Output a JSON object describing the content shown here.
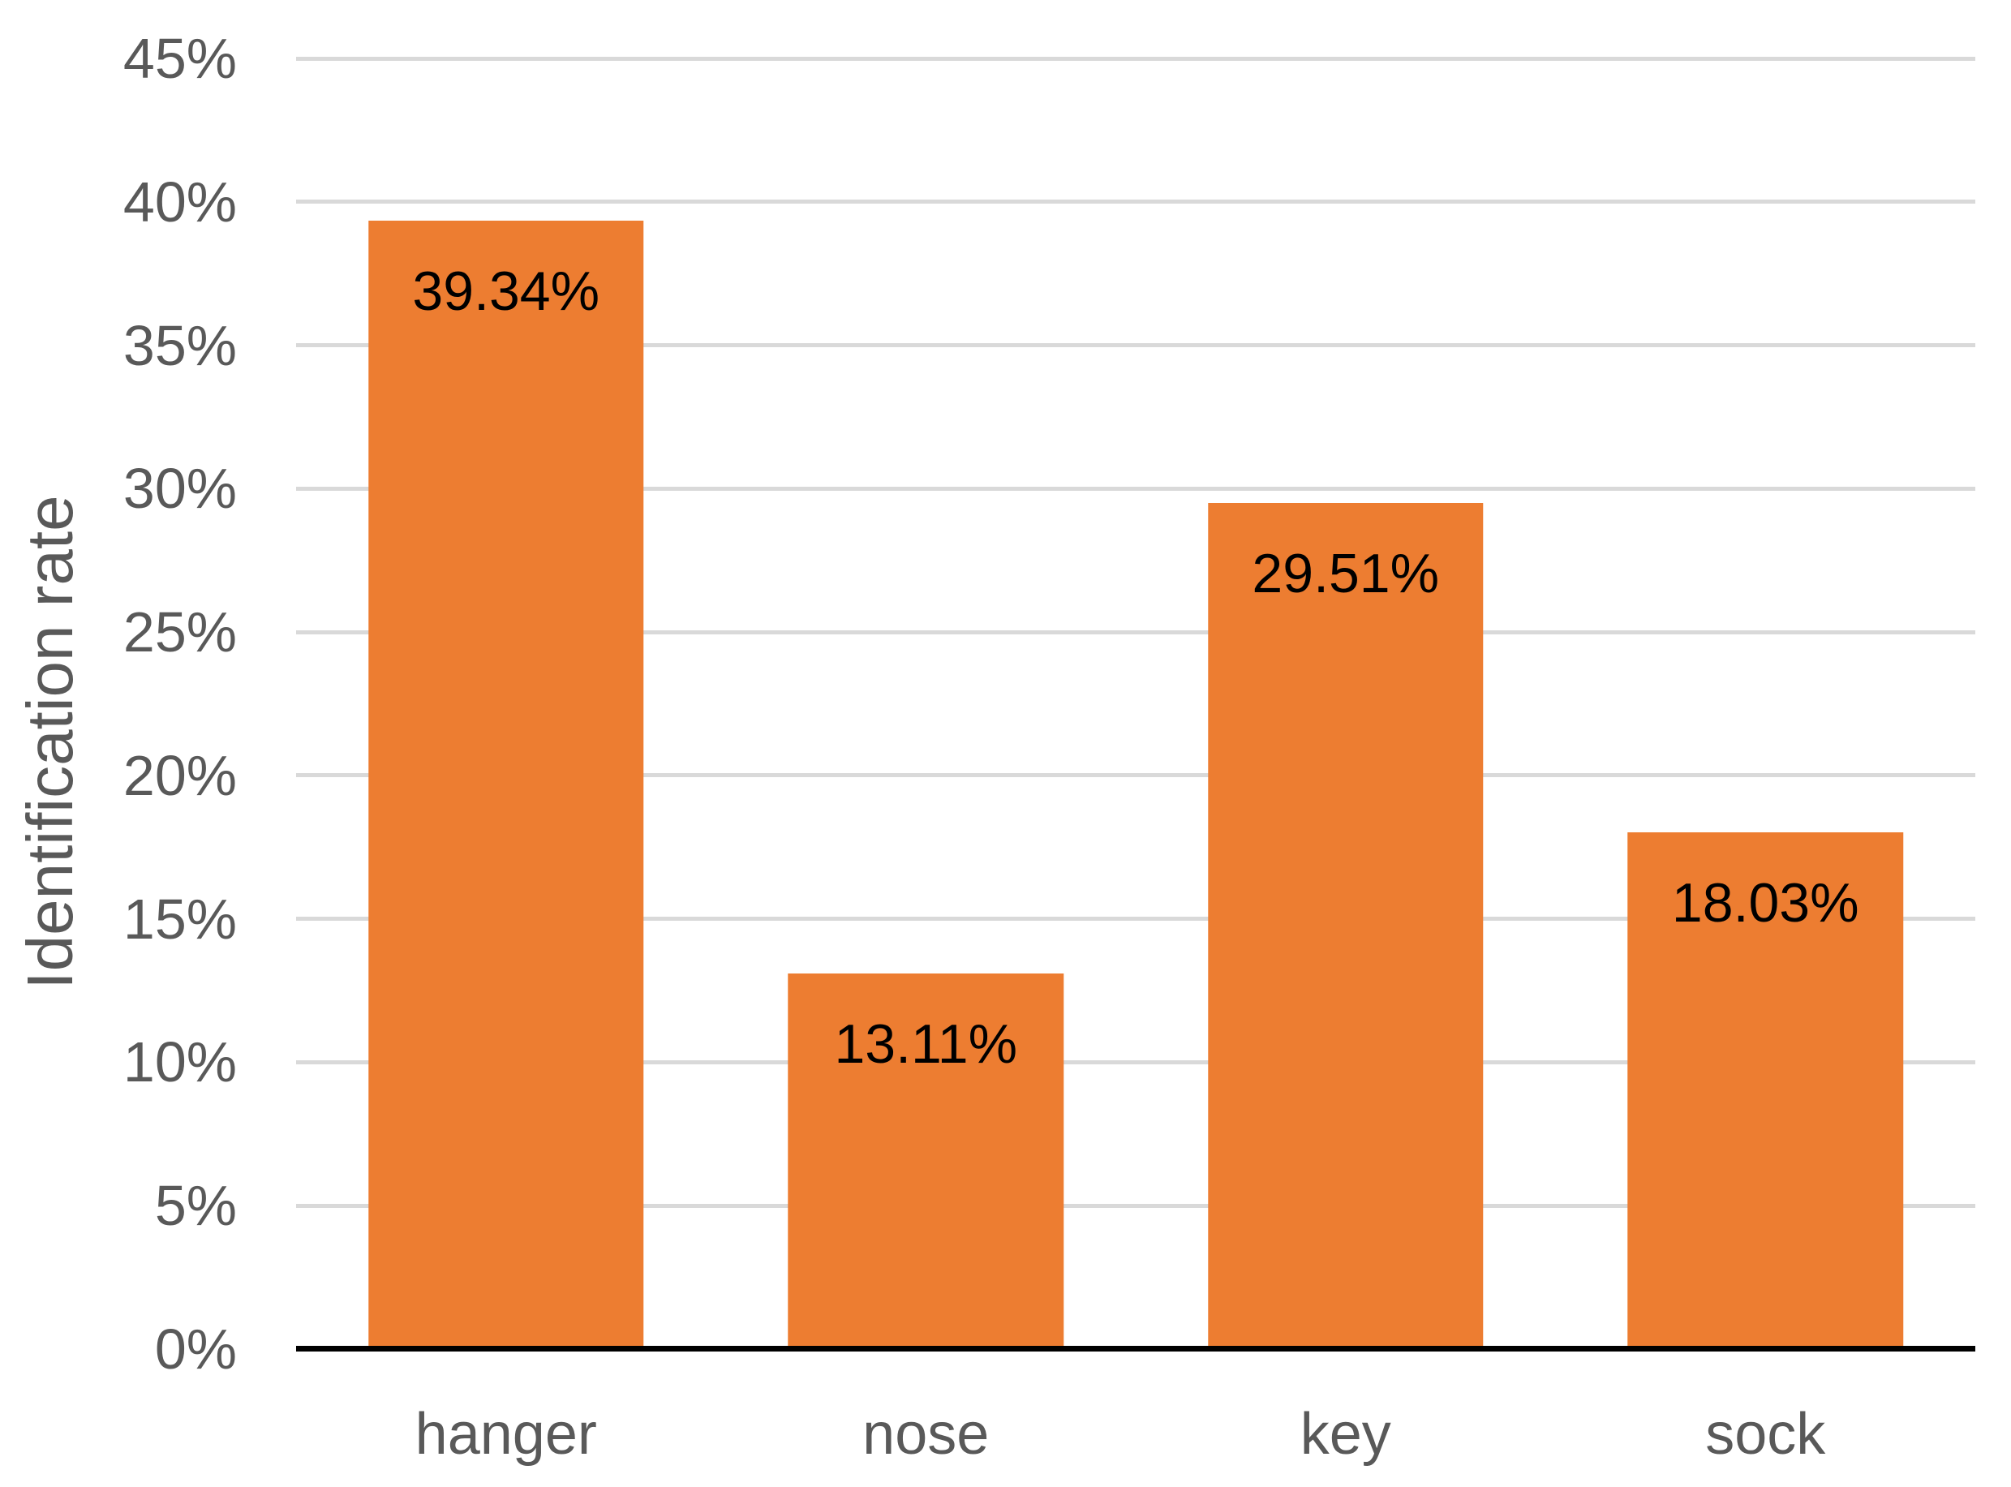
{
  "chart_data": {
    "type": "bar",
    "title": "",
    "xlabel": "",
    "ylabel": "Identification rate",
    "categories": [
      "hanger",
      "nose",
      "key",
      "sock"
    ],
    "values": [
      39.34,
      13.11,
      29.51,
      18.03
    ],
    "value_labels": [
      "39.34%",
      "13.11%",
      "29.51%",
      "18.03%"
    ],
    "ylim": [
      0,
      45
    ],
    "ytick_step": 5,
    "yticks": [
      0,
      5,
      10,
      15,
      20,
      25,
      30,
      35,
      40,
      45
    ],
    "ytick_labels": [
      "0%",
      "5%",
      "10%",
      "15%",
      "20%",
      "25%",
      "30%",
      "35%",
      "40%",
      "45%"
    ],
    "grid": true,
    "legend": false,
    "colors": {
      "bar": "#ED7D31",
      "data_label": "#000000",
      "axis_text": "#595959",
      "gridline": "#D9D9D9",
      "axis_line": "#000000",
      "background": "#FFFFFF"
    }
  }
}
